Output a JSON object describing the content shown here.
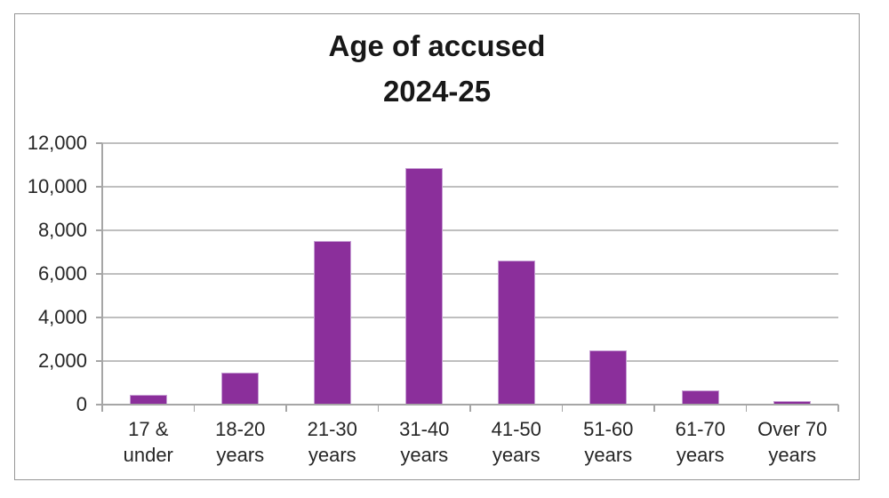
{
  "title": {
    "line1": "Age of accused",
    "line2": "2024-25"
  },
  "chart_data": {
    "type": "bar",
    "title": "Age of accused 2024-25",
    "categories": [
      "17 & under",
      "18-20 years",
      "21-30 years",
      "31-40 years",
      "41-50 years",
      "51-60 years",
      "61-70 years",
      "Over 70 years"
    ],
    "xtick_lines": [
      [
        "17 &",
        "under"
      ],
      [
        "18-20",
        "years"
      ],
      [
        "21-30",
        "years"
      ],
      [
        "31-40",
        "years"
      ],
      [
        "41-50",
        "years"
      ],
      [
        "51-60",
        "years"
      ],
      [
        "61-70",
        "years"
      ],
      [
        "Over 70",
        "years"
      ]
    ],
    "values": [
      450,
      1450,
      7500,
      10850,
      6600,
      2500,
      650,
      150
    ],
    "xlabel": "",
    "ylabel": "",
    "ylim": [
      0,
      12000
    ],
    "ytick_step": 2000,
    "ytick_labels": [
      "0",
      "2,000",
      "4,000",
      "6,000",
      "8,000",
      "10,000",
      "12,000"
    ],
    "grid": true,
    "legend": "none",
    "colors": {
      "bar_fill": "#8B2F9B",
      "bar_border": "#C79FD4",
      "gridline": "#BFBFBF",
      "axis": "#A6A6A6",
      "text": "#262626",
      "title_text": "#181818",
      "frame_border": "#969696"
    }
  }
}
